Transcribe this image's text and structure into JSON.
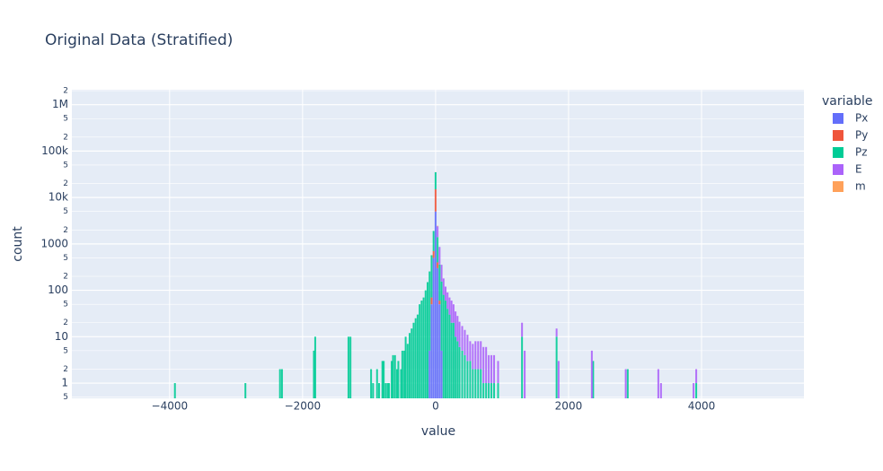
{
  "chart_data": {
    "type": "histogram",
    "title": "Original Data (Stratified)",
    "x_label": "value",
    "y_label": "count",
    "legend_title": "variable",
    "barmode": "stack",
    "ylog": true,
    "grid": true,
    "legend": "right",
    "xlim": [
      -5470,
      5540
    ],
    "xticks": [
      {
        "value": -4000,
        "label": "−4000"
      },
      {
        "value": -2000,
        "label": "−2000"
      },
      0,
      2000,
      4000
    ],
    "ylim": [
      0.47,
      2100000
    ],
    "yticks": [
      {
        "value": 0.5,
        "label": "5"
      },
      1,
      2,
      5,
      10,
      {
        "value": 20,
        "label": "2"
      },
      {
        "value": 50,
        "label": "5"
      },
      100,
      {
        "value": 200,
        "label": "2"
      },
      {
        "value": 500,
        "label": "5"
      },
      1000,
      {
        "value": 2000,
        "label": "2"
      },
      {
        "value": 5000,
        "label": "5"
      },
      {
        "value": 10000,
        "label": "10k"
      },
      {
        "value": 20000,
        "label": "2"
      },
      {
        "value": 50000,
        "label": "5"
      },
      {
        "value": 100000,
        "label": "100k"
      },
      {
        "value": 200000,
        "label": "2"
      },
      {
        "value": 500000,
        "label": "5"
      },
      {
        "value": 1000000,
        "label": "1M"
      },
      {
        "value": 2000000,
        "label": "2"
      }
    ],
    "series": [
      {
        "name": "Px",
        "color": "#636efa",
        "x": [
          -90,
          -60,
          -30,
          0,
          30,
          60,
          90
        ],
        "values": [
          5,
          50,
          500,
          5000,
          300,
          50,
          5
        ]
      },
      {
        "name": "Py",
        "color": "#ef553b",
        "x": [
          -60,
          -30,
          0,
          30,
          60
        ],
        "values": [
          20,
          200,
          10000,
          100,
          10
        ]
      },
      {
        "name": "Pz",
        "color": "#00cc96",
        "x": [
          -3920,
          -2860,
          -2340,
          -2310,
          -1830,
          -1810,
          -1310,
          -1280,
          -970,
          -940,
          -880,
          -850,
          -800,
          -780,
          -750,
          -720,
          -700,
          -660,
          -640,
          -610,
          -580,
          -560,
          -520,
          -500,
          -470,
          -450,
          -420,
          -390,
          -360,
          -330,
          -300,
          -270,
          -240,
          -210,
          -180,
          -150,
          -120,
          -90,
          -60,
          -30,
          0,
          30,
          60,
          90,
          120,
          150,
          180,
          210,
          240,
          270,
          300,
          330,
          360,
          400,
          440,
          480,
          520,
          560,
          600,
          640,
          680,
          720,
          760,
          800,
          840,
          880,
          940,
          1300,
          1820,
          2370,
          2890,
          3920
        ],
        "values": [
          1,
          1,
          2,
          2,
          5,
          10,
          10,
          10,
          2,
          1,
          2,
          1,
          3,
          3,
          1,
          1,
          1,
          3,
          4,
          4,
          2,
          3,
          2,
          5,
          5,
          10,
          7,
          12,
          15,
          20,
          25,
          30,
          50,
          60,
          70,
          100,
          150,
          250,
          500,
          1200,
          20000,
          1000,
          300,
          150,
          80,
          60,
          40,
          30,
          20,
          20,
          10,
          8,
          6,
          5,
          4,
          3,
          3,
          2,
          2,
          2,
          2,
          1,
          1,
          1,
          1,
          1,
          1,
          10,
          10,
          3,
          2,
          1
        ]
      },
      {
        "name": "E",
        "color": "#ab63fa",
        "x": [
          30,
          60,
          90,
          120,
          150,
          180,
          210,
          240,
          270,
          300,
          330,
          360,
          400,
          440,
          480,
          520,
          560,
          600,
          640,
          680,
          720,
          760,
          800,
          840,
          880,
          940,
          1300,
          1340,
          1820,
          1850,
          2350,
          2860,
          3350,
          3390,
          3880,
          3920
        ],
        "values": [
          1000,
          500,
          200,
          100,
          60,
          50,
          40,
          40,
          30,
          25,
          20,
          15,
          12,
          10,
          8,
          5,
          5,
          6,
          6,
          6,
          5,
          5,
          3,
          3,
          3,
          2,
          10,
          5,
          5,
          3,
          5,
          2,
          2,
          1,
          1,
          1
        ]
      },
      {
        "name": "m",
        "color": "#ffa15a",
        "x": [
          0,
          30
        ],
        "values": [
          200,
          50
        ]
      }
    ]
  }
}
